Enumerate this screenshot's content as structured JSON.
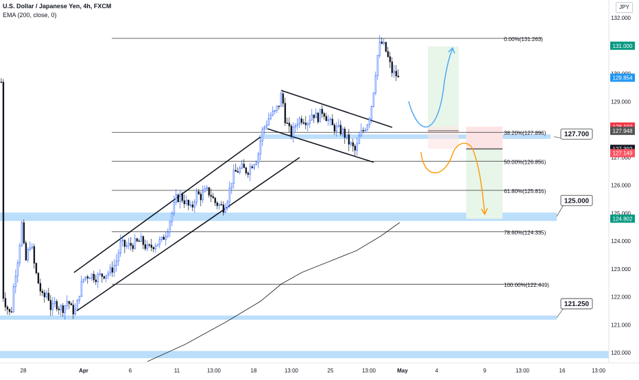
{
  "header": {
    "title": "U.S. Dollar / Japanese Yen, 4h, FXCM",
    "indicator": "EMA (200, close, 0)",
    "currency_button": "JPY"
  },
  "chart_data": {
    "type": "candlestick",
    "y_ticks": [
      "132.000",
      "131.000",
      "130.000",
      "129.000",
      "128.000",
      "127.000",
      "126.000",
      "125.000",
      "124.000",
      "123.000",
      "122.000",
      "121.000",
      "120.000"
    ],
    "x_ticks": [
      "28",
      "Apr",
      "6",
      "11",
      "13:00",
      "18",
      "13:00",
      "25",
      "13:00",
      "May",
      "4",
      "9",
      "13:00",
      "16",
      "13:00"
    ],
    "ylim": [
      119.8,
      132.2
    ],
    "fibonacci": [
      {
        "label": "0.00%(131.263)",
        "price": 131.263
      },
      {
        "label": "38.20%(127.896)",
        "price": 127.896
      },
      {
        "label": "50.00%(126.856)",
        "price": 126.856
      },
      {
        "label": "61.80%(125.816)",
        "price": 125.816
      },
      {
        "label": "78.60%(124.335)",
        "price": 124.335
      },
      {
        "label": "100.00%(122.449)",
        "price": 122.449
      }
    ],
    "zones": [
      {
        "price_top": 127.82,
        "price_bottom": 127.66,
        "label": "127.700"
      },
      {
        "price_top": 125.02,
        "price_bottom": 124.72,
        "label": "125.000"
      },
      {
        "price_top": 121.33,
        "price_bottom": 121.18,
        "label": "121.250"
      },
      {
        "price_top": 120.06,
        "price_bottom": 119.8,
        "label": ""
      }
    ],
    "price_labels": [
      {
        "text": "131.000",
        "price": 131.0,
        "color": "#089981"
      },
      {
        "text": "129.854",
        "price": 129.854,
        "color": "#2196f3"
      },
      {
        "text": "128.102",
        "price": 128.102,
        "color": "#f23645"
      },
      {
        "text": "127.948",
        "price": 127.948,
        "color": "#555555"
      },
      {
        "text": "127.302",
        "price": 127.302,
        "color": "#131722"
      },
      {
        "text": "127.149",
        "price": 127.149,
        "color": "#f7525f"
      },
      {
        "text": "124.802",
        "price": 124.802,
        "color": "#089981"
      }
    ],
    "long_position": {
      "entry": 127.95,
      "target": 131.0
    },
    "short_position": {
      "entry": 127.3,
      "stop": 128.1,
      "target": 124.8
    },
    "last_close": 129.854,
    "colors": {
      "up": "#2962ff",
      "down": "#131722",
      "zone": "#bbdefb",
      "long_arrow": "#42a5f5",
      "short_arrow": "#ff9800",
      "profit_fill": "#e8f5e9",
      "loss_fill": "#fde4e4"
    }
  }
}
